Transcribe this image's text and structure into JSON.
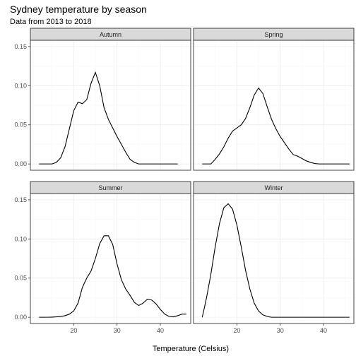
{
  "chart_data": {
    "type": "line",
    "title": "Sydney temperature by season",
    "subtitle": "Data from 2013 to 2018",
    "xlabel": "Temperature (Celsius)",
    "ylabel": "",
    "xlim": [
      10,
      47
    ],
    "ylim": [
      -0.008,
      0.158
    ],
    "x_ticks": [
      20,
      30,
      40
    ],
    "y_ticks": [
      0.0,
      0.05,
      0.1,
      0.15
    ],
    "y_tick_labels": [
      "0.00",
      "0.05",
      "0.10",
      "0.15"
    ],
    "grid": true,
    "facets": [
      {
        "name": "Autumn",
        "x": [
          12.0,
          15.0,
          16.0,
          17.0,
          18.0,
          19.0,
          20.0,
          21.0,
          22.0,
          23.0,
          24.0,
          25.0,
          26.0,
          27.0,
          28.0,
          29.0,
          30.0,
          31.0,
          32.0,
          33.0,
          34.0,
          35.0,
          44.0
        ],
        "y": [
          0.0,
          0.0,
          0.002,
          0.008,
          0.022,
          0.045,
          0.068,
          0.079,
          0.077,
          0.082,
          0.103,
          0.117,
          0.1,
          0.072,
          0.057,
          0.046,
          0.035,
          0.025,
          0.015,
          0.006,
          0.002,
          0.0,
          0.0
        ]
      },
      {
        "name": "Spring",
        "x": [
          12.0,
          14.0,
          15.0,
          16.0,
          17.0,
          18.0,
          19.0,
          20.0,
          21.0,
          22.0,
          23.0,
          24.0,
          25.0,
          26.0,
          27.0,
          28.0,
          29.0,
          30.0,
          31.0,
          32.0,
          33.0,
          34.0,
          35.0,
          36.0,
          37.0,
          38.0,
          39.0,
          40.0,
          46.0
        ],
        "y": [
          0.0,
          0.0,
          0.006,
          0.013,
          0.022,
          0.033,
          0.042,
          0.046,
          0.05,
          0.058,
          0.072,
          0.088,
          0.097,
          0.09,
          0.073,
          0.057,
          0.045,
          0.035,
          0.027,
          0.019,
          0.012,
          0.01,
          0.007,
          0.004,
          0.002,
          0.0005,
          0.0,
          0.0,
          0.0
        ]
      },
      {
        "name": "Summer",
        "x": [
          12.0,
          14.0,
          15.0,
          16.0,
          17.0,
          18.0,
          19.0,
          20.0,
          21.0,
          22.0,
          23.0,
          24.0,
          25.0,
          26.0,
          27.0,
          28.0,
          29.0,
          30.0,
          31.0,
          32.0,
          33.0,
          34.0,
          35.0,
          36.0,
          37.0,
          38.0,
          39.0,
          40.0,
          41.0,
          42.0,
          43.0,
          44.0,
          45.0,
          46.0
        ],
        "y": [
          0.0,
          0.0,
          0.0002,
          0.0005,
          0.001,
          0.002,
          0.004,
          0.008,
          0.018,
          0.038,
          0.05,
          0.059,
          0.075,
          0.094,
          0.104,
          0.104,
          0.093,
          0.068,
          0.048,
          0.036,
          0.028,
          0.019,
          0.015,
          0.018,
          0.023,
          0.022,
          0.017,
          0.01,
          0.004,
          0.001,
          0.0005,
          0.002,
          0.004,
          0.004
        ]
      },
      {
        "name": "Winter",
        "x": [
          12.0,
          12.5,
          13.0,
          14.0,
          15.0,
          16.0,
          17.0,
          18.0,
          19.0,
          20.0,
          21.0,
          22.0,
          23.0,
          24.0,
          25.0,
          26.0,
          27.0,
          28.0,
          46.0
        ],
        "y": [
          0.0,
          0.012,
          0.025,
          0.055,
          0.09,
          0.12,
          0.14,
          0.145,
          0.138,
          0.118,
          0.09,
          0.06,
          0.036,
          0.018,
          0.008,
          0.003,
          0.001,
          0.0,
          0.0
        ]
      }
    ]
  }
}
